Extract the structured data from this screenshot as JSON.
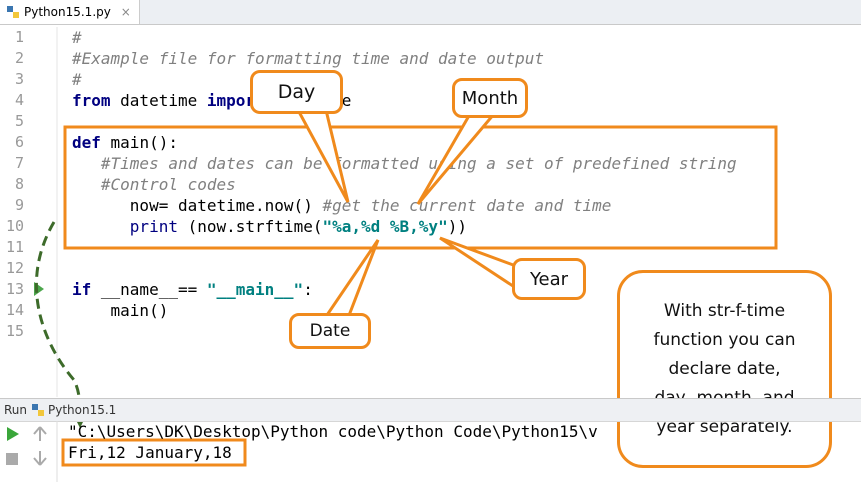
{
  "tab": {
    "file": "Python15.1.py"
  },
  "editor": {
    "lines": [
      {
        "number": 1,
        "segments": [
          {
            "text": "#",
            "style": "comment"
          }
        ]
      },
      {
        "number": 2,
        "segments": [
          {
            "text": "#Example file for formatting time and date output",
            "style": "comment"
          }
        ]
      },
      {
        "number": 3,
        "segments": [
          {
            "text": "#",
            "style": "comment"
          }
        ]
      },
      {
        "number": 4,
        "segments": [
          {
            "text": "from",
            "style": "keyword"
          },
          {
            "text": " datetime ",
            "style": "plain"
          },
          {
            "text": "import",
            "style": "keyword"
          },
          {
            "text": " datetime",
            "style": "plain"
          }
        ]
      },
      {
        "number": 5,
        "segments": []
      },
      {
        "number": 6,
        "segments": [
          {
            "text": "def",
            "style": "keyword"
          },
          {
            "text": " main():",
            "style": "plain"
          }
        ]
      },
      {
        "number": 7,
        "segments": [
          {
            "text": "   #Times and dates can be formatted using a set of predefined string",
            "style": "comment"
          }
        ]
      },
      {
        "number": 8,
        "segments": [
          {
            "text": "   #Control codes",
            "style": "comment"
          }
        ]
      },
      {
        "number": 9,
        "segments": [
          {
            "text": "      now= datetime.now() ",
            "style": "plain"
          },
          {
            "text": "#get the current date and time",
            "style": "comment"
          }
        ]
      },
      {
        "number": 10,
        "segments": [
          {
            "text": "      print",
            "style": "builtin"
          },
          {
            "text": " (now.strftime(",
            "style": "plain"
          },
          {
            "text": "\"%a,%d %B,%y\"",
            "style": "string"
          },
          {
            "text": "))",
            "style": "plain"
          }
        ]
      },
      {
        "number": 11,
        "segments": []
      },
      {
        "number": 12,
        "segments": []
      },
      {
        "number": 13,
        "segments": [
          {
            "text": "if",
            "style": "keyword"
          },
          {
            "text": " __name__== ",
            "style": "plain"
          },
          {
            "text": "\"__main__\"",
            "style": "string"
          },
          {
            "text": ":",
            "style": "plain"
          }
        ]
      },
      {
        "number": 14,
        "segments": [
          {
            "text": "    main()",
            "style": "plain"
          }
        ]
      },
      {
        "number": 15,
        "segments": []
      }
    ]
  },
  "callouts": {
    "day": "Day",
    "month": "Month",
    "year": "Year",
    "date": "Date",
    "note": "With str-f-time function you can declare date, day, month, and year separately."
  },
  "run_panel": {
    "label": "Run",
    "config": "Python15.1",
    "output": [
      "\"C:\\Users\\DK\\Desktop\\Python code\\Python Code\\Python15\\v",
      "Fri,12 January,18"
    ]
  }
}
